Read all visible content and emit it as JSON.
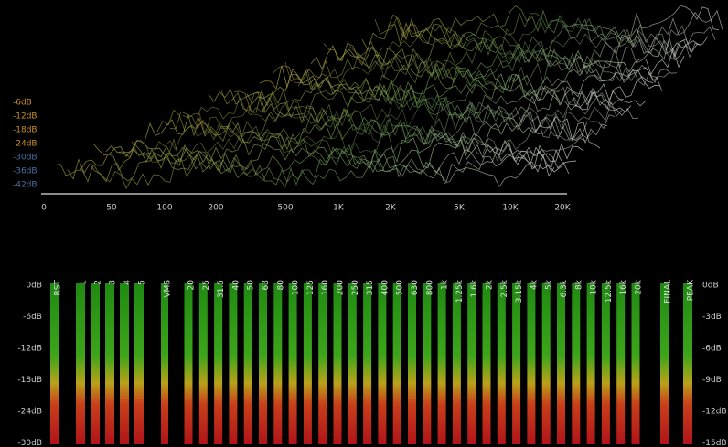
{
  "spectrum": {
    "level_labels": [
      "-6dB",
      "-12dB",
      "-18dB",
      "-24dB",
      "-30dB",
      "-36dB",
      "-42dB"
    ],
    "freq_labels": [
      "0",
      "50",
      "100",
      "200",
      "500",
      "1K",
      "2K",
      "5K",
      "10K",
      "20K"
    ]
  },
  "meters": {
    "left_scale": [
      "0dB",
      "-6dB",
      "-12dB",
      "-18dB",
      "-24dB",
      "-30dB"
    ],
    "right_scale": [
      "0dB",
      "-3dB",
      "-6dB",
      "-9dB",
      "-12dB",
      "-15dB"
    ],
    "channels": [
      "RST",
      "1",
      "2",
      "3",
      "4",
      "5"
    ],
    "rms": "VMS",
    "bands": [
      "20",
      "25",
      "31.5",
      "40",
      "50",
      "63",
      "80",
      "100",
      "125",
      "160",
      "200",
      "250",
      "315",
      "400",
      "500",
      "630",
      "800",
      "1k",
      "1.25k",
      "1.6k",
      "2k",
      "2.5k",
      "3.15k",
      "4k",
      "5k",
      "6.3k",
      "8k",
      "10k",
      "12.5k",
      "16k",
      "20k"
    ],
    "outputs": [
      "FINAL",
      "PEAK"
    ]
  }
}
